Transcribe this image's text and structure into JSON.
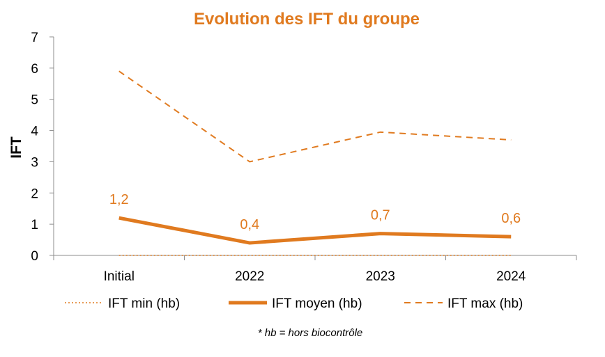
{
  "chart_data": {
    "type": "line",
    "title": "Evolution des IFT du groupe",
    "ylabel": "IFT",
    "xlabel": "",
    "categories": [
      "Initial",
      "2022",
      "2023",
      "2024"
    ],
    "ylim": [
      0,
      7
    ],
    "yticks": [
      0,
      1,
      2,
      3,
      4,
      5,
      6,
      7
    ],
    "grid": false,
    "legend_position": "bottom",
    "series": [
      {
        "name": "IFT min (hb)",
        "style": "dotted",
        "values": [
          0,
          0,
          0,
          0
        ],
        "data_labels": null
      },
      {
        "name": "IFT moyen (hb)",
        "style": "solid",
        "values": [
          1.2,
          0.4,
          0.7,
          0.6
        ],
        "data_labels": [
          "1,2",
          "0,4",
          "0,7",
          "0,6"
        ]
      },
      {
        "name": "IFT max (hb)",
        "style": "dashed",
        "values": [
          5.9,
          3.0,
          3.95,
          3.7
        ],
        "data_labels": null
      }
    ],
    "footnote": "* hb = hors biocontrôle",
    "colors": {
      "series": "#E07A1F",
      "title": "#E07A1F",
      "axis": "#8C8C8C",
      "labels": "#E07A1F"
    }
  }
}
